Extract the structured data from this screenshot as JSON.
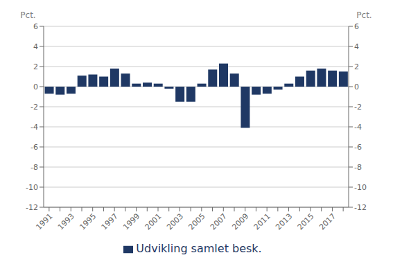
{
  "chart_data": {
    "type": "bar",
    "categories": [
      "1991",
      null,
      "1993",
      null,
      "1995",
      null,
      "1997",
      null,
      "1999",
      null,
      "2001",
      null,
      "2003",
      null,
      "2005",
      null,
      "2007",
      null,
      "2009",
      null,
      "2011",
      null,
      "2013",
      null,
      "2015",
      null,
      "2017",
      null
    ],
    "series": [
      {
        "name": "Udvikling samlet besk.",
        "color": "#1F3864",
        "values": [
          -0.7,
          -0.8,
          -0.7,
          1.1,
          1.2,
          1.0,
          1.8,
          1.3,
          0.3,
          0.4,
          0.3,
          -0.2,
          -1.5,
          -1.5,
          0.3,
          1.7,
          2.3,
          1.3,
          -4.1,
          -0.8,
          -0.7,
          -0.3,
          0.3,
          1.0,
          1.6,
          1.8,
          1.6,
          1.5
        ]
      }
    ],
    "ylim": [
      -12,
      6
    ],
    "yticks": [
      -12,
      -10,
      -8,
      -6,
      -4,
      -2,
      0,
      2,
      4,
      6
    ],
    "y2lim": [
      -12,
      6
    ],
    "y2ticks": [
      -12,
      -10,
      -8,
      -6,
      -4,
      -2,
      0,
      2,
      4,
      6
    ],
    "ylabel": "Pct.",
    "y2label": "Pct.",
    "legend": "bottom",
    "grid": true
  }
}
